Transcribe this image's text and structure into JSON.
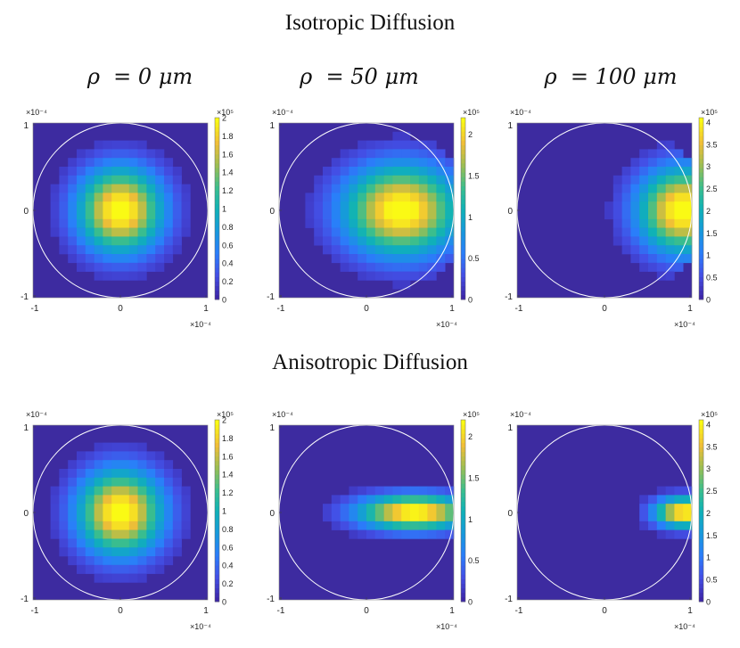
{
  "section_titles": {
    "isotropic": "Isotropic Diffusion",
    "anisotropic": "Anisotropic Diffusion"
  },
  "column_titles": [
    "ρ  = 0 μm",
    "ρ  = 50 μm",
    "ρ  = 100 μm"
  ],
  "axis": {
    "ticks": [
      "-1",
      "0",
      "1"
    ],
    "y_exponent": "×10⁻⁴",
    "x_exponent": "×10⁻⁴"
  },
  "colors": {
    "background": "#3d2ba0",
    "circle": "#ffffff"
  },
  "chart_data": [
    {
      "type": "heatmap",
      "row": "Isotropic Diffusion",
      "title": "ρ = 0 μm",
      "center": [
        0,
        0
      ],
      "spread_x": 3.4,
      "spread_y": 3.4,
      "xlim": [
        -1,
        1
      ],
      "ylim": [
        -1,
        1
      ],
      "circle_radius": 1,
      "colorbar": {
        "max": 2,
        "ticks": [
          "0",
          "0.2",
          "0.4",
          "0.6",
          "0.8",
          "1",
          "1.2",
          "1.4",
          "1.6",
          "1.8",
          "2"
        ],
        "exponent": "×10⁵"
      }
    },
    {
      "type": "heatmap",
      "row": "Isotropic Diffusion",
      "title": "ρ = 50 μm",
      "center": [
        0.4,
        0
      ],
      "spread_x": 4.6,
      "spread_y": 3.6,
      "xlim": [
        -1,
        1
      ],
      "ylim": [
        -1,
        1
      ],
      "circle_radius": 1,
      "colorbar": {
        "max": 2.2,
        "ticks": [
          "0",
          "0.5",
          "1",
          "1.5",
          "2"
        ],
        "exponent": "×10⁵"
      }
    },
    {
      "type": "heatmap",
      "row": "Isotropic Diffusion",
      "title": "ρ = 100 μm",
      "center": [
        0.9,
        0
      ],
      "spread_x": 3.6,
      "spread_y": 3.4,
      "xlim": [
        -1,
        1
      ],
      "ylim": [
        -1,
        1
      ],
      "circle_radius": 1,
      "colorbar": {
        "max": 4.1,
        "ticks": [
          "0",
          "0.5",
          "1",
          "1.5",
          "2",
          "2.5",
          "3",
          "3.5",
          "4"
        ],
        "exponent": "×10⁵"
      }
    },
    {
      "type": "heatmap",
      "row": "Anisotropic Diffusion",
      "title": "ρ = 0 μm",
      "center": [
        0,
        0
      ],
      "spread_x": 3.4,
      "spread_y": 3.4,
      "xlim": [
        -1,
        1
      ],
      "ylim": [
        -1,
        1
      ],
      "circle_radius": 1,
      "colorbar": {
        "max": 2,
        "ticks": [
          "0",
          "0.2",
          "0.4",
          "0.6",
          "0.8",
          "1",
          "1.2",
          "1.4",
          "1.6",
          "1.8",
          "2"
        ],
        "exponent": "×10⁵"
      }
    },
    {
      "type": "heatmap",
      "row": "Anisotropic Diffusion",
      "title": "ρ = 50 μm",
      "center": [
        0.55,
        0
      ],
      "spread_x": 4.5,
      "spread_y": 1.4,
      "xlim": [
        -1,
        1
      ],
      "ylim": [
        -1,
        1
      ],
      "circle_radius": 1,
      "colorbar": {
        "max": 2.2,
        "ticks": [
          "0",
          "0.5",
          "1",
          "1.5",
          "2"
        ],
        "exponent": "×10⁵"
      }
    },
    {
      "type": "heatmap",
      "row": "Anisotropic Diffusion",
      "title": "ρ = 100 μm",
      "center": [
        0.92,
        0
      ],
      "spread_x": 2.4,
      "spread_y": 1.2,
      "xlim": [
        -1,
        1
      ],
      "ylim": [
        -1,
        1
      ],
      "circle_radius": 1,
      "colorbar": {
        "max": 4.1,
        "ticks": [
          "0",
          "0.5",
          "1",
          "1.5",
          "2",
          "2.5",
          "3",
          "3.5",
          "4"
        ],
        "exponent": "×10⁵"
      }
    }
  ]
}
